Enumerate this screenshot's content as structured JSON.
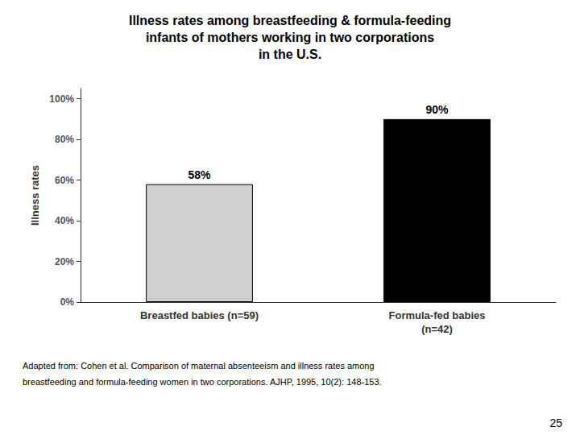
{
  "chart_data": {
    "type": "bar",
    "title": "Illness rates among breastfeeding & formula-feeding\ninfants of mothers working in two corporations\nin the U.S.",
    "categories": [
      "Breastfed babies (n=59)",
      "Formula-fed babies\n(n=42)"
    ],
    "values": [
      58,
      90
    ],
    "value_labels": [
      "58%",
      "90%"
    ],
    "data_labels": true,
    "colors": [
      "#d0d0d0",
      "#000000"
    ],
    "ylabel": "Illness rates",
    "ylim": [
      0,
      105
    ],
    "yticks": [
      {
        "value": 0,
        "label": "0%"
      },
      {
        "value": 20,
        "label": "20%"
      },
      {
        "value": 40,
        "label": "40%"
      },
      {
        "value": 60,
        "label": "60%"
      },
      {
        "value": 80,
        "label": "80%"
      },
      {
        "value": 100,
        "label": "100%"
      }
    ],
    "grid": false,
    "annotations": [
      "Adapted from: Cohen et al. Comparison of maternal absenteeism and illness rates among",
      "breastfeeding and formula-feeding women in two corporations. AJHP, 1995, 10(2): 148-153.",
      "25"
    ]
  }
}
